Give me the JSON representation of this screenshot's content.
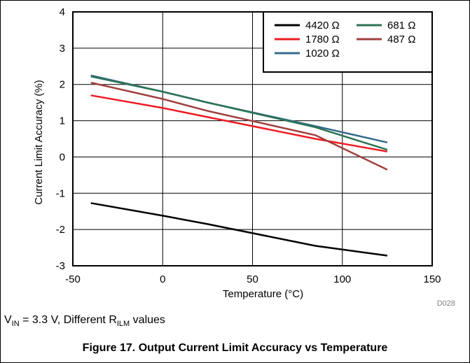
{
  "chart_data": {
    "type": "line",
    "xlabel": "Temperature (°C)",
    "ylabel": "Current Limit Accuracy (%)",
    "xlim": [
      -50,
      150
    ],
    "ylim": [
      -3,
      4
    ],
    "xticks": [
      "-50",
      "0",
      "50",
      "100",
      "150"
    ],
    "yticks": [
      "-3",
      "-2",
      "-1",
      "0",
      "1",
      "2",
      "3",
      "4"
    ],
    "grid": true,
    "legend_position": "top-right",
    "chart_id": "D028",
    "series": [
      {
        "name": "4420 Ω",
        "color": "#000000",
        "x": [
          -40,
          0,
          25,
          85,
          125
        ],
        "y": [
          -1.27,
          -1.62,
          -1.85,
          -2.45,
          -2.72
        ]
      },
      {
        "name": "1780 Ω",
        "color": "#ee1c23",
        "x": [
          -40,
          0,
          25,
          85,
          125
        ],
        "y": [
          1.7,
          1.35,
          1.1,
          0.5,
          0.15
        ]
      },
      {
        "name": "1020 Ω",
        "color": "#366b8d",
        "x": [
          -40,
          0,
          25,
          85,
          125
        ],
        "y": [
          2.25,
          1.8,
          1.5,
          0.85,
          0.4
        ]
      },
      {
        "name": "681 Ω",
        "color": "#2c7455",
        "x": [
          -40,
          0,
          25,
          85,
          125
        ],
        "y": [
          2.22,
          1.8,
          1.5,
          0.82,
          0.2
        ]
      },
      {
        "name": "487 Ω",
        "color": "#a0403f",
        "x": [
          -40,
          0,
          25,
          85,
          125
        ],
        "y": [
          2.05,
          1.6,
          1.27,
          0.6,
          -0.35
        ]
      }
    ]
  },
  "conditions": {
    "vin_symbol": "V",
    "vin_sub": "IN",
    "vin_text": " = 3.3 V, Different R",
    "rilm_sub": "ILM",
    "tail_text": " values"
  },
  "caption": "Figure 17. Output Current Limit Accuracy vs Temperature"
}
